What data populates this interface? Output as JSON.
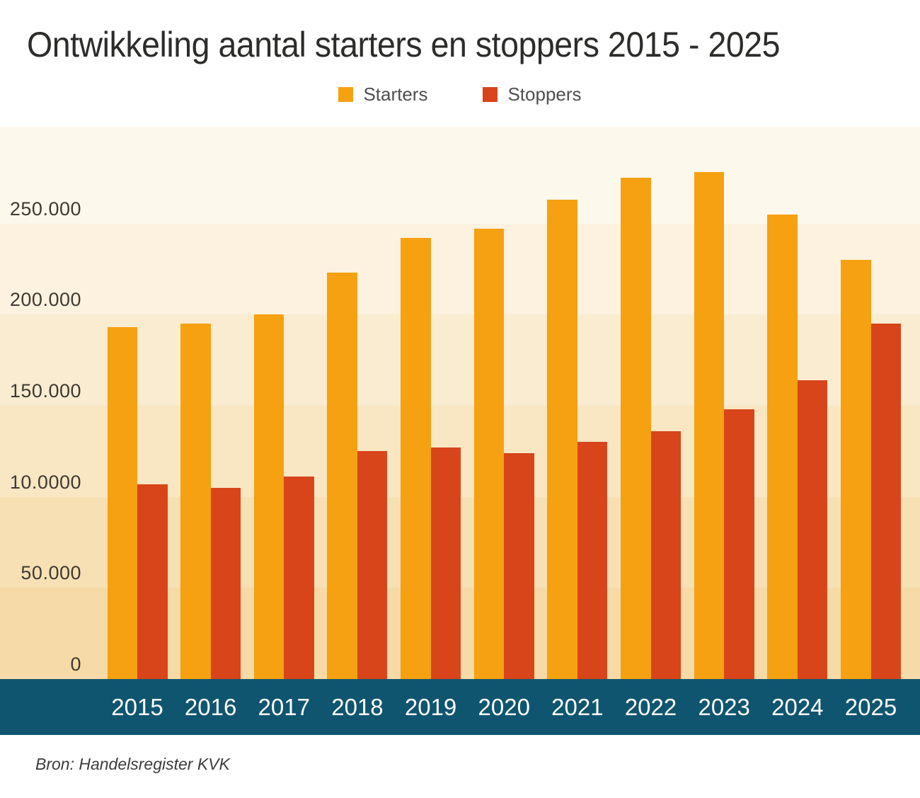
{
  "page": {
    "title": "Ontwikkeling aantal starters en stoppers 2015 - 2025",
    "source_note": "Bron: Handelsregister KVK"
  },
  "legend": {
    "items": [
      {
        "label": "Starters",
        "color": "#F5A112"
      },
      {
        "label": "Stoppers",
        "color": "#D8451B"
      }
    ]
  },
  "colors": {
    "starters": "#F5A112",
    "stoppers": "#D8451B",
    "axis_band": "#10556F",
    "axis_text": "#FFFFFF",
    "tick_text": "#3E3A33",
    "title_text": "#2C2C2B",
    "band_shades": [
      "#FDF8EC",
      "#FCF2DF",
      "#FAECD1",
      "#F9E6C3",
      "#F8E0B5",
      "#F6DAA7"
    ]
  },
  "chart_data": {
    "type": "bar",
    "title": "Ontwikkeling aantal starters en stoppers 2015 - 2025",
    "categories": [
      "2015",
      "2016",
      "2017",
      "2018",
      "2019",
      "2020",
      "2021",
      "2022",
      "2023",
      "2024",
      "2025"
    ],
    "series": [
      {
        "name": "Starters",
        "color": "#F5A112",
        "values": [
          193000,
          195000,
          200000,
          223000,
          242000,
          247000,
          263000,
          275000,
          278000,
          255000,
          230000
        ]
      },
      {
        "name": "Stoppers",
        "color": "#D8451B",
        "values": [
          107000,
          105000,
          111000,
          125000,
          127000,
          124000,
          130000,
          136000,
          148000,
          164000,
          195000
        ]
      }
    ],
    "xlabel": "",
    "ylabel": "",
    "ylim": [
      0,
      303000
    ],
    "y_ticks": [
      {
        "label": "250.000",
        "value": 250000
      },
      {
        "label": "200.000",
        "value": 200000
      },
      {
        "label": "150.000",
        "value": 150000
      },
      {
        "label": "10.0000",
        "value": 100000
      },
      {
        "label": "50.000",
        "value": 50000
      },
      {
        "label": "0",
        "value": 0
      }
    ],
    "grid": "banded-background",
    "legend_position": "top-center",
    "source": "Bron: Handelsregister KVK"
  }
}
